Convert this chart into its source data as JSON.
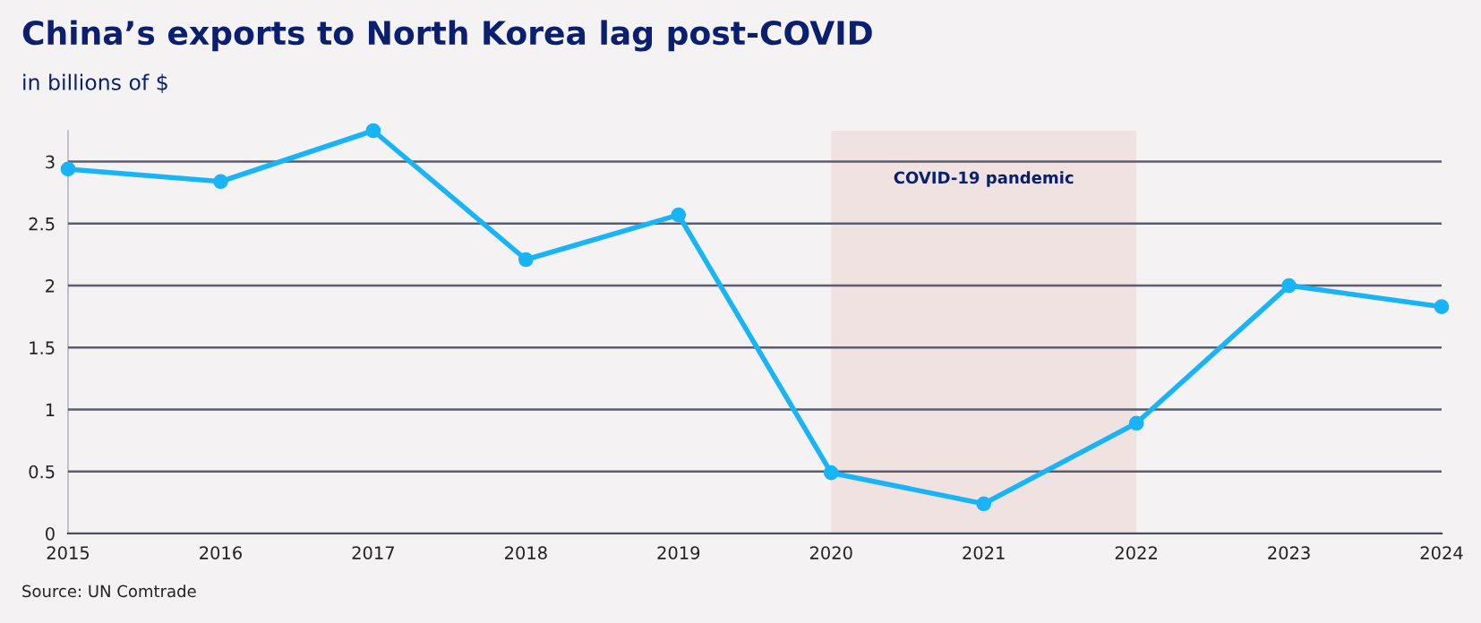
{
  "chart_data": {
    "type": "line",
    "title": "China’s exports to North Korea lag post-COVID",
    "subtitle": "in billions of $",
    "x": [
      2015,
      2016,
      2017,
      2018,
      2019,
      2020,
      2021,
      2022,
      2023,
      2024
    ],
    "series": [
      {
        "color": "#19b4f5",
        "values": [
          2.94,
          2.84,
          3.25,
          2.21,
          2.57,
          0.49,
          0.24,
          0.89,
          2.0,
          1.83
        ]
      }
    ],
    "xlim": [
      2015,
      2024
    ],
    "xticks": [
      2015,
      2016,
      2017,
      2018,
      2019,
      2020,
      2021,
      2022,
      2023,
      2024
    ],
    "ylim": [
      0,
      3.25
    ],
    "yticks": [
      0,
      0.5,
      1,
      1.5,
      2,
      2.5,
      3
    ],
    "bands": [
      {
        "axis": "x",
        "from": 2020,
        "to": 2022,
        "label": "COVID-19 pandemic",
        "color": "#f0e2e1"
      }
    ],
    "grid": "y",
    "marker": "circle",
    "line_style": "solid",
    "annotations": [
      "Source: UN Comtrade"
    ]
  }
}
